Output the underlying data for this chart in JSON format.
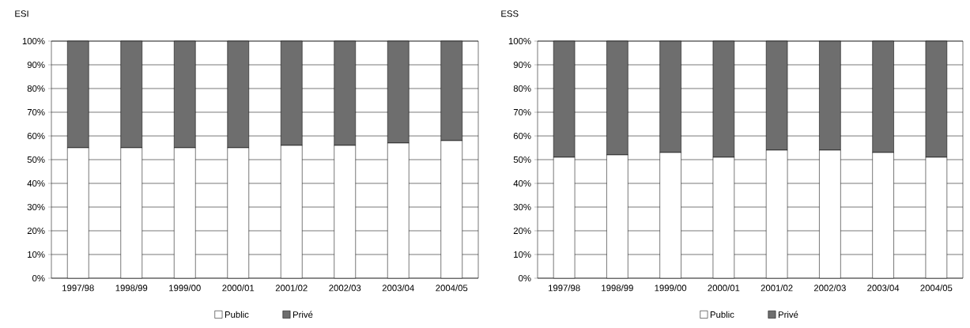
{
  "chart_data": [
    {
      "type": "bar",
      "title": "ESI",
      "stacked": true,
      "grid": "y",
      "legend": "bottom",
      "categories": [
        "1997/98",
        "1998/99",
        "1999/00",
        "2000/01",
        "2001/02",
        "2002/03",
        "2003/04",
        "2004/05"
      ],
      "series": [
        {
          "name": "Public",
          "color": "#ffffff",
          "values": [
            55,
            55,
            55,
            55,
            56,
            56,
            57,
            58
          ]
        },
        {
          "name": "Privé",
          "color": "#6e6e6e",
          "values": [
            45,
            45,
            45,
            45,
            44,
            44,
            43,
            42
          ]
        }
      ],
      "ylim": [
        0,
        100
      ],
      "yticks": [
        {
          "value": 0,
          "label": "0%"
        },
        {
          "value": 10,
          "label": "10%"
        },
        {
          "value": 20,
          "label": "20%"
        },
        {
          "value": 30,
          "label": "30%"
        },
        {
          "value": 40,
          "label": "40%"
        },
        {
          "value": 50,
          "label": "50%"
        },
        {
          "value": 60,
          "label": "60%"
        },
        {
          "value": 70,
          "label": "70%"
        },
        {
          "value": 80,
          "label": "80%"
        },
        {
          "value": 90,
          "label": "90%"
        },
        {
          "value": 100,
          "label": "100%"
        }
      ]
    },
    {
      "type": "bar",
      "title": "ESS",
      "stacked": true,
      "grid": "y",
      "legend": "bottom",
      "categories": [
        "1997/98",
        "1998/99",
        "1999/00",
        "2000/01",
        "2001/02",
        "2002/03",
        "2003/04",
        "2004/05"
      ],
      "series": [
        {
          "name": "Public",
          "color": "#ffffff",
          "values": [
            51,
            52,
            53,
            51,
            54,
            54,
            53,
            51
          ]
        },
        {
          "name": "Privé",
          "color": "#6e6e6e",
          "values": [
            49,
            48,
            47,
            49,
            46,
            46,
            47,
            49
          ]
        }
      ],
      "ylim": [
        0,
        100
      ],
      "yticks": [
        {
          "value": 0,
          "label": "0%"
        },
        {
          "value": 10,
          "label": "10%"
        },
        {
          "value": 20,
          "label": "20%"
        },
        {
          "value": 30,
          "label": "30%"
        },
        {
          "value": 40,
          "label": "40%"
        },
        {
          "value": 50,
          "label": "50%"
        },
        {
          "value": 60,
          "label": "60%"
        },
        {
          "value": 70,
          "label": "70%"
        },
        {
          "value": 80,
          "label": "80%"
        },
        {
          "value": 90,
          "label": "90%"
        },
        {
          "value": 100,
          "label": "100%"
        }
      ]
    }
  ]
}
